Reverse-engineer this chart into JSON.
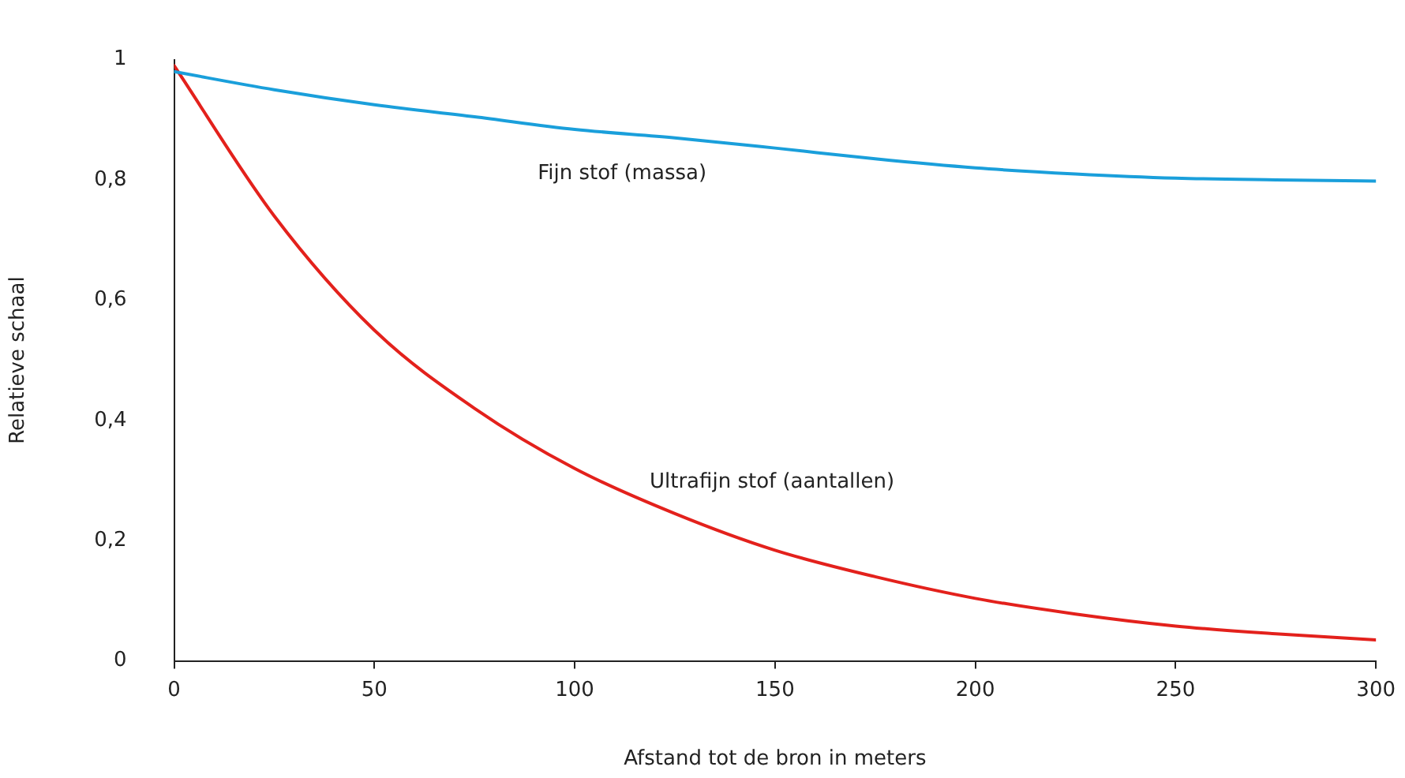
{
  "chart_data": {
    "type": "line",
    "xlabel": "Afstand tot de bron in meters",
    "ylabel": "Relatieve schaal",
    "xlim": [
      0,
      300
    ],
    "xticks": [
      0,
      50,
      100,
      150,
      200,
      250,
      300
    ],
    "ylim": [
      0,
      1
    ],
    "yticks": [
      0,
      {
        "value": 0.2,
        "label": "0,2"
      },
      {
        "value": 0.4,
        "label": "0,4"
      },
      {
        "value": 0.6,
        "label": "0,6"
      },
      {
        "value": 0.8,
        "label": "0,8"
      },
      1
    ],
    "grid": false,
    "legend": false,
    "marker": "none",
    "line_style": "solid",
    "x": [
      0,
      25,
      50,
      75,
      100,
      125,
      150,
      175,
      200,
      225,
      250,
      275,
      300
    ],
    "series": [
      {
        "name": "Fijn stof (massa)",
        "color": "#1a9fdb",
        "values": [
          0.98,
          0.95,
          0.925,
          0.905,
          0.884,
          0.87,
          0.853,
          0.835,
          0.82,
          0.81,
          0.803,
          0.8,
          0.798
        ]
      },
      {
        "name": "Ultrafijn stof (aantallen)",
        "color": "#e3211c",
        "values": [
          0.99,
          0.74,
          0.55,
          0.42,
          0.32,
          0.245,
          0.184,
          0.14,
          0.104,
          0.078,
          0.058,
          0.045,
          0.035
        ]
      }
    ]
  }
}
